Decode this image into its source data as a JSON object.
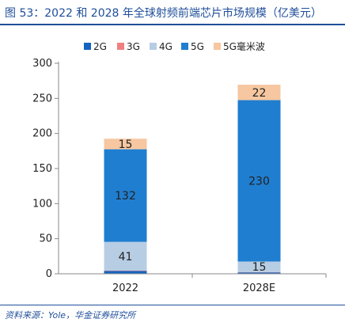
{
  "title": "图 53：2022 和 2028 年全球射频前端芯片市场规模（亿美元）",
  "source": "资料来源：Yole，华金证券研究所",
  "colors": {
    "2G": "#1565c0",
    "3G": "#f08080",
    "4G": "#b7cde4",
    "5G": "#1f7ed0",
    "5G毫米波": "#f6c7a0",
    "axis": "#888888",
    "frame": "#1f4e9a"
  },
  "chart_data": {
    "type": "bar",
    "stacked": true,
    "categories": [
      "2022",
      "2028E"
    ],
    "ylim": [
      0,
      300
    ],
    "yticks": [
      "0",
      "50",
      "100",
      "150",
      "200",
      "250",
      "300"
    ],
    "legend_position": "top-right",
    "series": [
      {
        "name": "2G",
        "values": [
          4,
          2
        ]
      },
      {
        "name": "3G",
        "values": [
          0.5,
          0.5
        ]
      },
      {
        "name": "4G",
        "values": [
          41,
          15
        ]
      },
      {
        "name": "5G",
        "values": [
          132,
          230
        ]
      },
      {
        "name": "5G毫米波",
        "values": [
          15,
          22
        ]
      }
    ],
    "data_labels": [
      {
        "series": "4G",
        "category": "2022",
        "text": "41"
      },
      {
        "series": "5G",
        "category": "2022",
        "text": "132"
      },
      {
        "series": "5G毫米波",
        "category": "2022",
        "text": "15"
      },
      {
        "series": "4G",
        "category": "2028E",
        "text": "15"
      },
      {
        "series": "5G",
        "category": "2028E",
        "text": "230"
      },
      {
        "series": "5G毫米波",
        "category": "2028E",
        "text": "22"
      }
    ]
  }
}
